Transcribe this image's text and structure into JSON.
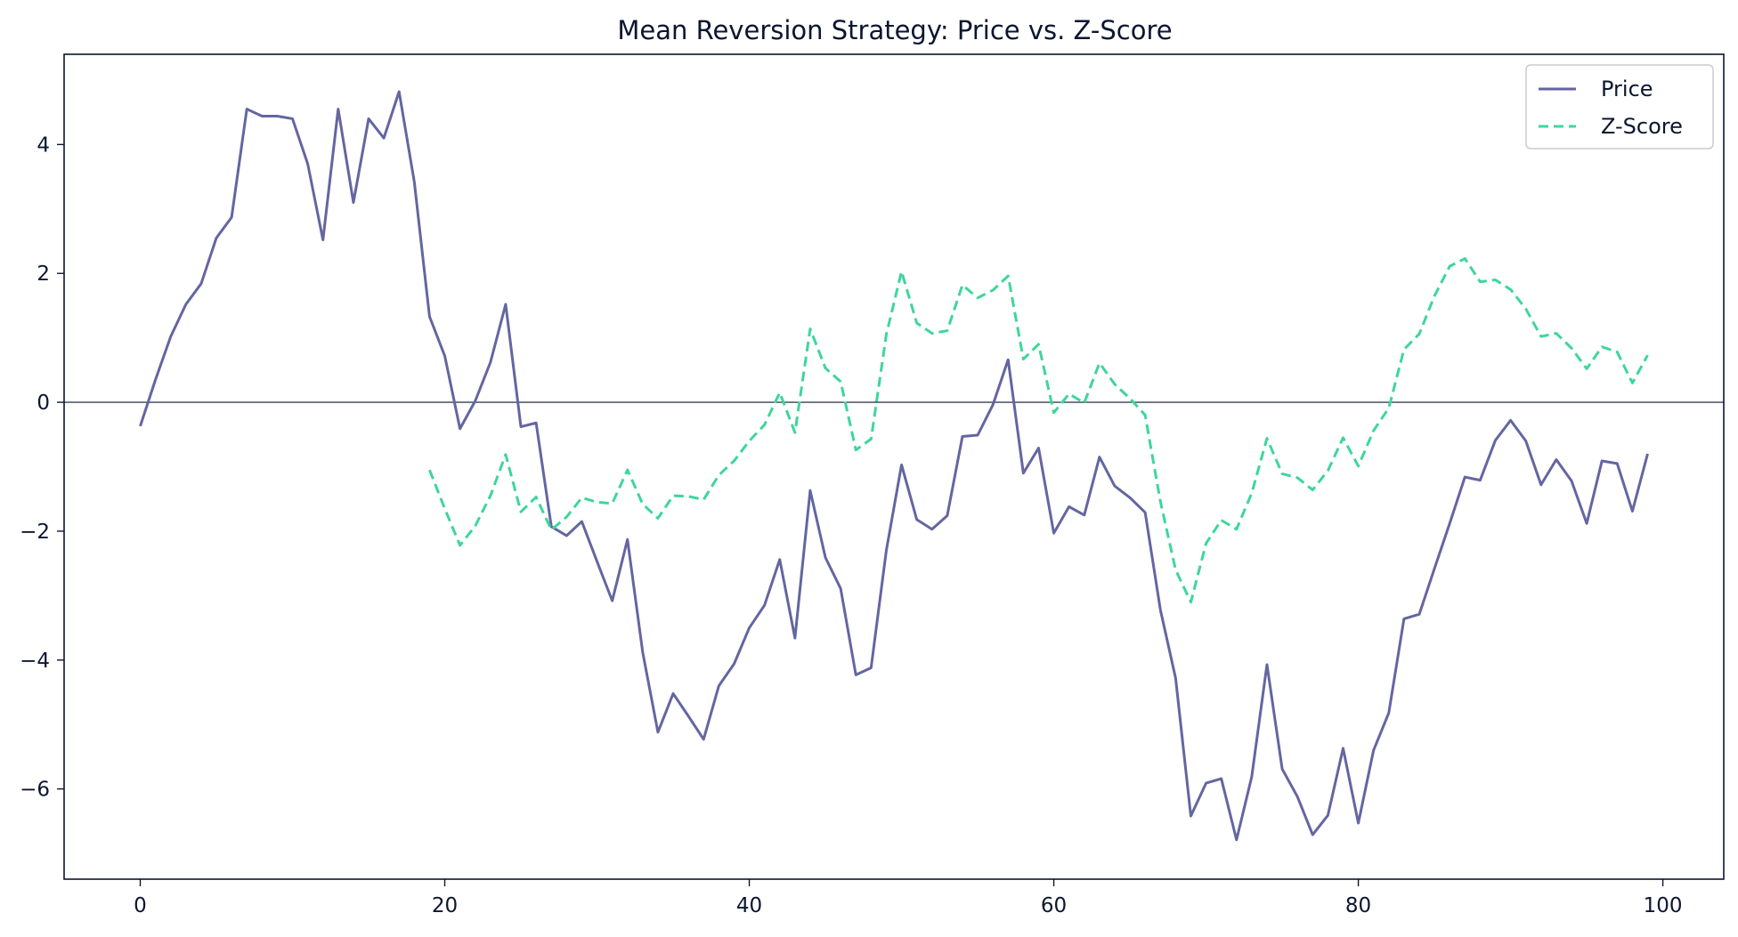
{
  "chart_data": {
    "type": "line",
    "title": "Mean Reversion Strategy: Price vs. Z-Score",
    "xlabel": "",
    "ylabel": "",
    "xlim": [
      -5,
      104
    ],
    "ylim": [
      -7.4,
      5.4
    ],
    "xticks": [
      0,
      20,
      40,
      60,
      80,
      100
    ],
    "yticks": [
      -6,
      -4,
      -2,
      0,
      2,
      4
    ],
    "grid": false,
    "zero_line": true,
    "legend_position": "top-right",
    "colors": {
      "price": "#6366a0",
      "zscore": "#3ed69a",
      "axis": "#0b1630"
    },
    "series": [
      {
        "name": "Price",
        "style": "solid",
        "x_start": 0,
        "values": [
          -0.37,
          0.35,
          1.02,
          1.52,
          1.84,
          2.55,
          2.87,
          4.55,
          4.44,
          4.44,
          4.4,
          3.7,
          2.52,
          4.55,
          3.1,
          4.4,
          4.1,
          4.82,
          3.42,
          1.33,
          0.72,
          -0.41,
          0.02,
          0.62,
          1.52,
          -0.38,
          -0.32,
          -1.93,
          -2.07,
          -1.85,
          -2.47,
          -3.08,
          -2.13,
          -3.88,
          -5.12,
          -4.52,
          -4.87,
          -5.23,
          -4.4,
          -4.06,
          -3.5,
          -3.15,
          -2.44,
          -3.66,
          -1.37,
          -2.41,
          -2.89,
          -4.23,
          -4.12,
          -2.3,
          -0.97,
          -1.82,
          -1.97,
          -1.76,
          -0.53,
          -0.51,
          -0.04,
          0.66,
          -1.1,
          -0.71,
          -2.03,
          -1.62,
          -1.75,
          -0.85,
          -1.3,
          -1.48,
          -1.71,
          -3.22,
          -4.28,
          -6.42,
          -5.91,
          -5.84,
          -6.79,
          -5.81,
          -4.07,
          -5.69,
          -6.12,
          -6.71,
          -6.41,
          -5.37,
          -6.53,
          -5.4,
          -4.82,
          -3.36,
          -3.29,
          -2.58,
          -1.88,
          -1.16,
          -1.21,
          -0.59,
          -0.28,
          -0.6,
          -1.28,
          -0.89,
          -1.22,
          -1.88,
          -0.91,
          -0.95,
          -1.69,
          -0.8
        ]
      },
      {
        "name": "Z-Score",
        "style": "dashed",
        "x_start": 19,
        "values": [
          -1.05,
          -1.65,
          -2.22,
          -1.92,
          -1.45,
          -0.81,
          -1.7,
          -1.47,
          -1.98,
          -1.78,
          -1.48,
          -1.55,
          -1.57,
          -1.05,
          -1.58,
          -1.8,
          -1.45,
          -1.46,
          -1.51,
          -1.13,
          -0.91,
          -0.6,
          -0.35,
          0.15,
          -0.47,
          1.14,
          0.53,
          0.32,
          -0.74,
          -0.57,
          1.05,
          2.03,
          1.23,
          1.07,
          1.11,
          1.82,
          1.62,
          1.74,
          1.96,
          0.67,
          0.9,
          -0.16,
          0.13,
          -0.01,
          0.61,
          0.28,
          0.06,
          -0.2,
          -1.54,
          -2.6,
          -3.1,
          -2.19,
          -1.83,
          -1.97,
          -1.41,
          -0.56,
          -1.11,
          -1.17,
          -1.36,
          -1.06,
          -0.55,
          -0.99,
          -0.44,
          -0.09,
          0.82,
          1.06,
          1.65,
          2.11,
          2.23,
          1.87,
          1.9,
          1.75,
          1.45,
          1.02,
          1.07,
          0.84,
          0.52,
          0.86,
          0.78,
          0.3,
          0.73
        ]
      }
    ]
  }
}
